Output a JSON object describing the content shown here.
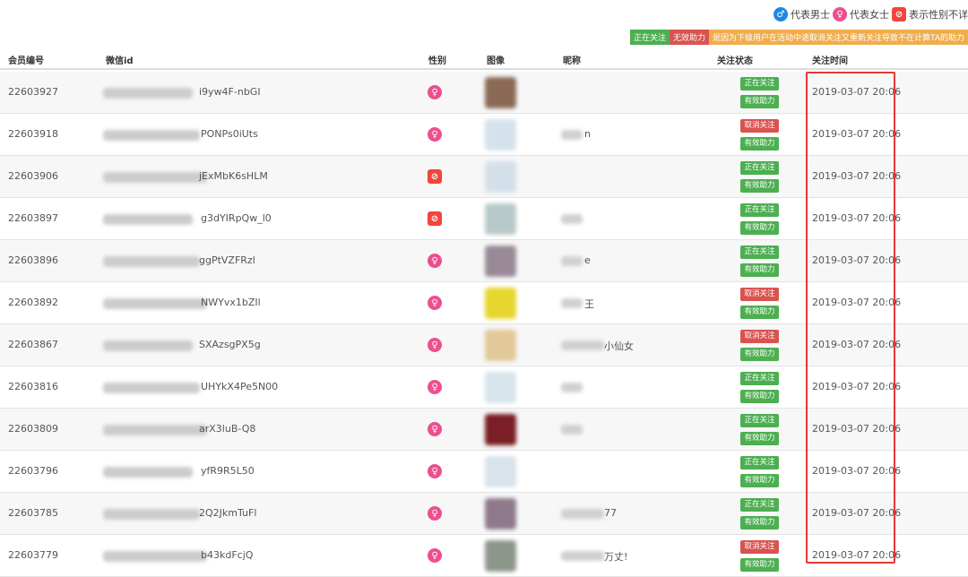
{
  "legend": {
    "male": "代表男士",
    "female": "代表女士",
    "unknown": "表示性别不详"
  },
  "notice": {
    "following": "正在关注",
    "invalid": "无效助力",
    "explanation": "是因为下级用户在活动中途取消关注又重新关注导致不在计算TA的助力"
  },
  "colors": {
    "green": "#4caf50",
    "red": "#d9534f",
    "orange": "#f0ad4e",
    "female": "#ec4f8f",
    "male": "#1e88e5",
    "unknown": "#f2453c",
    "highlight_box": "#e53935"
  },
  "columns": [
    "会员编号",
    "微信id",
    "性别",
    "图像",
    "昵称",
    "关注状态",
    "关注时间"
  ],
  "rows": [
    {
      "member_id": "22603927",
      "wechat_id": "i9yw4F-nbGI",
      "gender": "female",
      "avatar": "#8a6a55",
      "nickname": "",
      "follow": "正在关注",
      "assist": "有效助力",
      "time": "2019-03-07 20:06"
    },
    {
      "member_id": "22603918",
      "wechat_id": "PONPs0iUts",
      "gender": "female",
      "avatar": "#d5e2ec",
      "nickname": "n",
      "follow": "取消关注",
      "assist": "有效助力",
      "time": "2019-03-07 20:06"
    },
    {
      "member_id": "22603906",
      "wechat_id": "jExMbK6sHLM",
      "gender": "unknown",
      "avatar": "#d3e0ea",
      "nickname": "",
      "follow": "正在关注",
      "assist": "有效助力",
      "time": "2019-03-07 20:06"
    },
    {
      "member_id": "22603897",
      "wechat_id": "g3dYIRpQw_l0",
      "gender": "unknown",
      "avatar": "#b8c9c9",
      "nickname": "",
      "follow": "正在关注",
      "assist": "有效助力",
      "time": "2019-03-07 20:06"
    },
    {
      "member_id": "22603896",
      "wechat_id": "ggPtVZFRzl",
      "gender": "female",
      "avatar": "#9a8a98",
      "nickname": "e",
      "follow": "正在关注",
      "assist": "有效助力",
      "time": "2019-03-07 20:06"
    },
    {
      "member_id": "22603892",
      "wechat_id": "NWYvx1bZIl",
      "gender": "female",
      "avatar": "#e8d630",
      "nickname": "王",
      "follow": "取消关注",
      "assist": "有效助力",
      "time": "2019-03-07 20:06"
    },
    {
      "member_id": "22603867",
      "wechat_id": "SXAzsgPX5g",
      "gender": "female",
      "avatar": "#e2c99a",
      "nickname": "小仙女",
      "follow": "取消关注",
      "assist": "有效助力",
      "time": "2019-03-07 20:06"
    },
    {
      "member_id": "22603816",
      "wechat_id": "UHYkX4Pe5N00",
      "gender": "female",
      "avatar": "#d8e4ec",
      "nickname": "",
      "follow": "正在关注",
      "assist": "有效助力",
      "time": "2019-03-07 20:06"
    },
    {
      "member_id": "22603809",
      "wechat_id": "arX3luB-Q8",
      "gender": "female",
      "avatar": "#7a1f25",
      "nickname": "",
      "follow": "正在关注",
      "assist": "有效助力",
      "time": "2019-03-07 20:06"
    },
    {
      "member_id": "22603796",
      "wechat_id": "yfR9R5L50",
      "gender": "female",
      "avatar": "#d8e3ec",
      "nickname": "",
      "follow": "正在关注",
      "assist": "有效助力",
      "time": "2019-03-07 20:06"
    },
    {
      "member_id": "22603785",
      "wechat_id": "2Q2JkmTuFl",
      "gender": "female",
      "avatar": "#8f7a8c",
      "nickname": "77",
      "follow": "正在关注",
      "assist": "有效助力",
      "time": "2019-03-07 20:06"
    },
    {
      "member_id": "22603779",
      "wechat_id": "b43kdFcjQ",
      "gender": "female",
      "avatar": "#8d968a",
      "nickname": "万丈!",
      "follow": "取消关注",
      "assist": "有效助力",
      "time": "2019-03-07 20:06"
    }
  ]
}
